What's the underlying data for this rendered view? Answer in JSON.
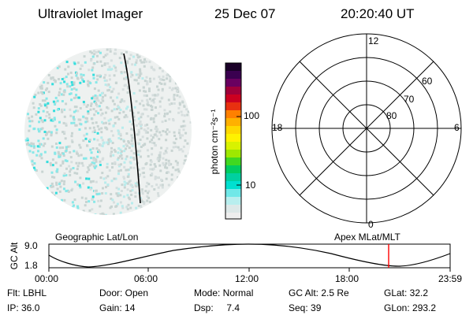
{
  "header": {
    "instrument": "Ultraviolet Imager",
    "date": "25 Dec 07",
    "time": "20:20:40 UT"
  },
  "colorbar": {
    "unit_label": "photon cm⁻²s⁻¹",
    "tick_labels": [
      "100",
      "10"
    ]
  },
  "polar_plot": {
    "mlt_labels": {
      "top": "12",
      "bottom": "0",
      "left": "18",
      "right": "6"
    },
    "lat_labels": [
      "60",
      "70",
      "80"
    ]
  },
  "orbit_panel": {
    "y_axis_label": "GC Alt",
    "y_ticks": [
      "9.0",
      "1.8"
    ],
    "left_title": "Geographic Lat/Lon",
    "right_title": "Apex MLat/MLT",
    "x_ticks": [
      "00:00",
      "06:00",
      "12:00",
      "18:00",
      "23:59"
    ],
    "marker_color": "#ff0000"
  },
  "info": {
    "row1": {
      "flt": "Flt: LBHL",
      "door": "Door: Open",
      "mode": "Mode: Normal",
      "gcalt": "GC Alt: 2.5 Re",
      "glat": "GLat:  32.2"
    },
    "row2": {
      "ip": "IP: 36.0",
      "gain": "Gain: 14",
      "dsp": "Dsp:     7.4",
      "seq": "Seq: 39",
      "glon": "GLon: 293.2"
    }
  }
}
